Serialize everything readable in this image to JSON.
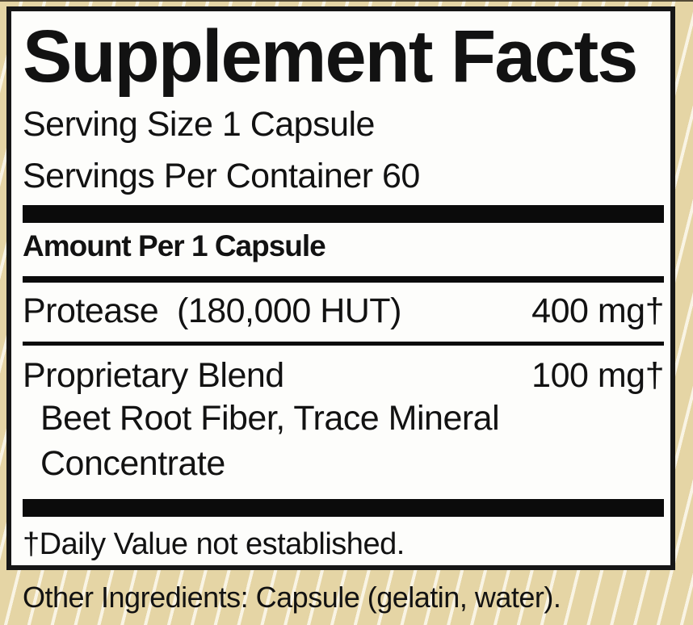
{
  "label": {
    "title": "Supplement Facts",
    "serving_size": "Serving Size 1 Capsule",
    "servings_per_container": "Servings Per Container 60",
    "amount_header": "Amount Per 1 Capsule",
    "rows": [
      {
        "name": "Protease  (180,000 HUT)",
        "amount": "400 mg†",
        "sub": []
      },
      {
        "name": "Proprietary Blend",
        "amount": "100 mg†",
        "sub": [
          "Beet Root Fiber, Trace Mineral",
          "Concentrate"
        ]
      }
    ],
    "footnote": "†Daily Value not established.",
    "other_ingredients": "Other Ingredients: Capsule (gelatin, water)."
  },
  "colors": {
    "tan": "#e5d5a5",
    "stripe": "#f9f4e4",
    "ink": "#121212",
    "bar": "#0b0b0b",
    "panel_bg": "#fdfdfb",
    "panel_border": "#161616"
  }
}
